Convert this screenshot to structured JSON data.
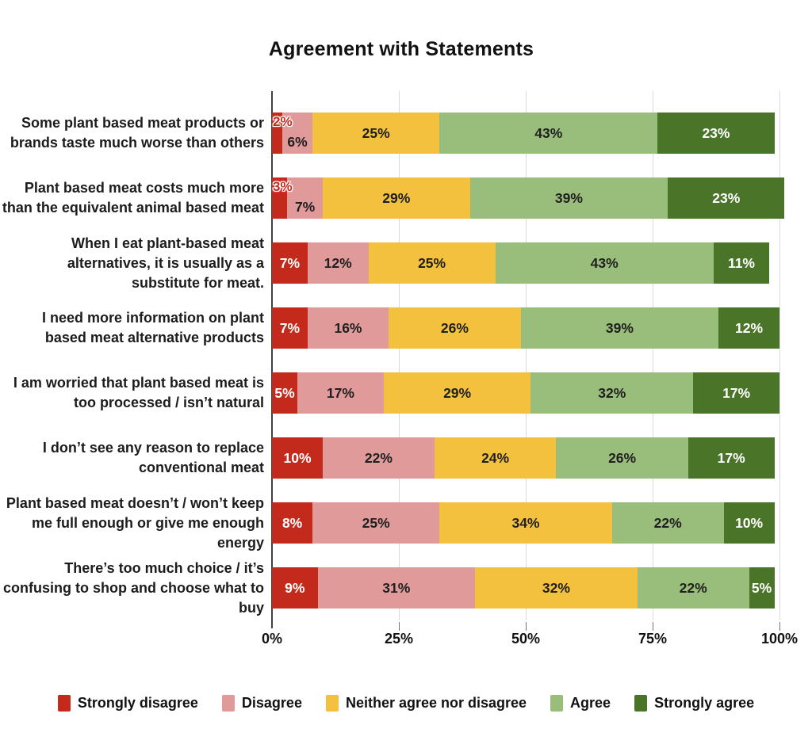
{
  "title": "Agreement with Statements",
  "chart_data": {
    "type": "bar",
    "variant": "horizontal-stacked",
    "title": "Agreement with Statements",
    "value_suffix": "%",
    "categories": [
      "Some plant based meat products or brands taste much worse than others",
      "Plant based meat costs much more than the equivalent animal based meat",
      "When I eat plant-based meat alternatives, it is usually as a substitute for meat.",
      "I need more information on plant based meat alternative products",
      "I am worried that plant based meat is too processed / isn’t natural",
      "I don’t see any reason to replace conventional meat",
      "Plant based meat doesn’t / won’t  keep me full enough or give me enough energy",
      "There’s too much choice / it’s confusing to shop and choose what to buy"
    ],
    "series": [
      {
        "name": "Strongly disagree",
        "color": "#c42a1c",
        "label_color": "#ffffff",
        "values": [
          2,
          3,
          7,
          7,
          5,
          10,
          8,
          9
        ]
      },
      {
        "name": "Disagree",
        "color": "#e09a9a",
        "label_color": "#1f1f1f",
        "values": [
          6,
          7,
          12,
          16,
          17,
          22,
          25,
          31
        ]
      },
      {
        "name": "Neither agree nor disagree",
        "color": "#f3c13e",
        "label_color": "#1f1f1f",
        "values": [
          25,
          29,
          25,
          26,
          29,
          24,
          34,
          32
        ]
      },
      {
        "name": "Agree",
        "color": "#99bd7a",
        "label_color": "#1f1f1f",
        "values": [
          43,
          39,
          43,
          39,
          32,
          26,
          22,
          22
        ]
      },
      {
        "name": "Strongly agree",
        "color": "#4a7528",
        "label_color": "#ffffff",
        "values": [
          23,
          23,
          11,
          12,
          17,
          17,
          10,
          5
        ]
      }
    ],
    "x_axis": {
      "ticks": [
        "0%",
        "25%",
        "50%",
        "75%",
        "100%"
      ],
      "tick_values": [
        0,
        25,
        50,
        75,
        100
      ],
      "range": [
        0,
        100
      ],
      "grid": true
    },
    "legend_position": "bottom",
    "small_label_threshold": 3
  }
}
